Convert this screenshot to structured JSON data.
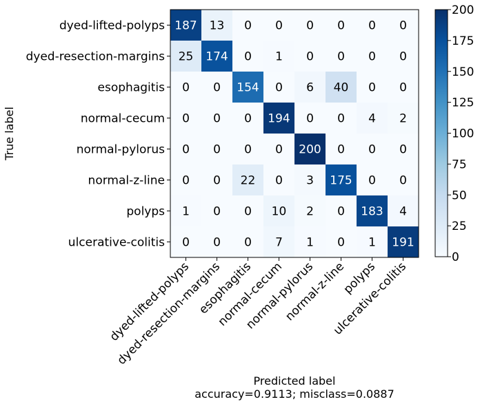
{
  "chart_data": {
    "type": "heatmap",
    "ylabel": "True label",
    "xlabel": "Predicted label",
    "xlabel_sub": "accuracy=0.9113; misclass=0.0887",
    "classes": [
      "dyed-lifted-polyps",
      "dyed-resection-margins",
      "esophagitis",
      "normal-cecum",
      "normal-pylorus",
      "normal-z-line",
      "polyps",
      "ulcerative-colitis"
    ],
    "matrix": [
      [
        187,
        13,
        0,
        0,
        0,
        0,
        0,
        0
      ],
      [
        25,
        174,
        0,
        1,
        0,
        0,
        0,
        0
      ],
      [
        0,
        0,
        154,
        0,
        6,
        40,
        0,
        0
      ],
      [
        0,
        0,
        0,
        194,
        0,
        0,
        4,
        2
      ],
      [
        0,
        0,
        0,
        0,
        200,
        0,
        0,
        0
      ],
      [
        0,
        0,
        22,
        0,
        3,
        175,
        0,
        0
      ],
      [
        1,
        0,
        0,
        10,
        2,
        0,
        183,
        4
      ],
      [
        0,
        0,
        0,
        7,
        1,
        0,
        1,
        191
      ]
    ],
    "colorbar": {
      "range": [
        0,
        200
      ],
      "ticks": [
        0,
        25,
        50,
        75,
        100,
        125,
        150,
        175,
        200
      ],
      "colormap": "Blues"
    },
    "text_threshold": 100,
    "text_colors": {
      "dark": "#000000",
      "light": "#ffffff"
    },
    "grid": false
  }
}
